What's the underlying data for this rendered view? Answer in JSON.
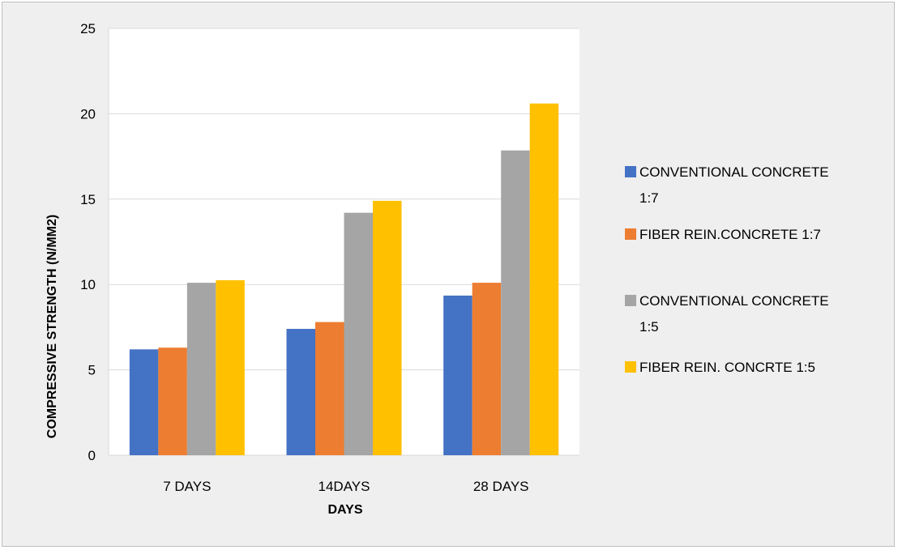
{
  "chart_data": {
    "type": "bar",
    "title": "",
    "xlabel": "DAYS",
    "ylabel": "COMPRESSIVE  STRENGTH  (N/MM2)",
    "categories": [
      "7 DAYS",
      "14DAYS",
      "28 DAYS"
    ],
    "ylim": [
      0,
      25
    ],
    "yticks": [
      0,
      5,
      10,
      15,
      20,
      25
    ],
    "grid": true,
    "legend_position": "right",
    "series": [
      {
        "name": "CONVENTIONAL CONCRETE 1:7",
        "legend_lines": [
          "CONVENTIONAL CONCRETE",
          "1:7"
        ],
        "color": "#4472c4",
        "values": [
          6.2,
          7.4,
          9.35
        ]
      },
      {
        "name": "FIBER REIN.CONCRETE 1:7",
        "legend_lines": [
          "FIBER REIN.CONCRETE 1:7"
        ],
        "color": "#ed7d31",
        "values": [
          6.3,
          7.8,
          10.1
        ]
      },
      {
        "name": "CONVENTIONAL CONCRETE 1:5",
        "legend_lines": [
          "CONVENTIONAL CONCRETE",
          "1:5"
        ],
        "color": "#a5a5a5",
        "values": [
          10.1,
          14.2,
          17.85
        ]
      },
      {
        "name": "FIBER REIN. CONCRTE 1:5",
        "legend_lines": [
          "FIBER REIN. CONCRTE 1:5"
        ],
        "color": "#ffc000",
        "values": [
          10.25,
          14.9,
          20.6
        ]
      }
    ]
  }
}
